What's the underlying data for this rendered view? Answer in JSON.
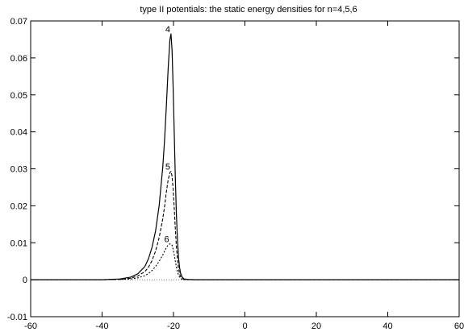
{
  "chart_data": {
    "type": "line",
    "title": "type II potentials: the static energy densities for n=4,5,6",
    "xlabel": "",
    "ylabel": "",
    "xlim": [
      -60,
      60
    ],
    "ylim": [
      -0.01,
      0.07
    ],
    "xticks": [
      -60,
      -40,
      -20,
      0,
      20,
      40,
      60
    ],
    "yticks": [
      -0.01,
      0,
      0.01,
      0.02,
      0.03,
      0.04,
      0.05,
      0.06,
      0.07
    ],
    "xtick_labels": [
      "-60",
      "-40",
      "-20",
      "0",
      "20",
      "40",
      "60"
    ],
    "ytick_labels": [
      "-0.01",
      "0",
      "0.01",
      "0.02",
      "0.03",
      "0.04",
      "0.05",
      "0.06",
      "0.07"
    ],
    "grid": false,
    "legend": "none",
    "series": [
      {
        "label": "4",
        "style": "solid",
        "x": [
          -60,
          -40,
          -35,
          -32,
          -30,
          -28,
          -27,
          -26,
          -25,
          -24,
          -23,
          -22.5,
          -22,
          -21.5,
          -21,
          -20.7,
          -20.4,
          -20.1,
          -19.8,
          -19.5,
          -19.2,
          -18.9,
          -18.6,
          -18.3,
          -18,
          -17.5,
          -17,
          -16,
          -14,
          0,
          60
        ],
        "values": [
          0,
          0,
          0.0002,
          0.0007,
          0.0016,
          0.0036,
          0.0057,
          0.0088,
          0.0133,
          0.0202,
          0.0305,
          0.0378,
          0.047,
          0.057,
          0.065,
          0.0665,
          0.062,
          0.052,
          0.04,
          0.028,
          0.018,
          0.011,
          0.0062,
          0.0033,
          0.0017,
          0.0006,
          0.0002,
          0.0001,
          0,
          0,
          0
        ]
      },
      {
        "label": "5",
        "style": "dashed",
        "x": [
          -60,
          -40,
          -35,
          -32,
          -30,
          -28,
          -27,
          -26,
          -25,
          -24,
          -23,
          -22.5,
          -22,
          -21.5,
          -21,
          -20.7,
          -20.4,
          -20.1,
          -19.8,
          -19.5,
          -19.2,
          -18.9,
          -18.6,
          -18.3,
          -18,
          -17.5,
          -17,
          -16,
          -14,
          0,
          60
        ],
        "values": [
          0,
          0,
          0.0001,
          0.0004,
          0.001,
          0.0022,
          0.0034,
          0.0052,
          0.0078,
          0.0115,
          0.0165,
          0.0198,
          0.0237,
          0.027,
          0.029,
          0.0293,
          0.028,
          0.0245,
          0.0195,
          0.014,
          0.0092,
          0.0056,
          0.0031,
          0.0016,
          0.0008,
          0.0003,
          0.0001,
          0,
          0,
          0,
          0
        ]
      },
      {
        "label": "6",
        "style": "dotted",
        "x": [
          -60,
          -40,
          -35,
          -32,
          -30,
          -28,
          -27,
          -26,
          -25,
          -24,
          -23,
          -22.5,
          -22,
          -21.5,
          -21,
          -20.7,
          -20.4,
          -20.1,
          -19.8,
          -19.5,
          -19.2,
          -18.9,
          -18.6,
          -18.3,
          -18,
          -17.5,
          -17,
          -16,
          -14,
          0,
          60
        ],
        "values": [
          0,
          0,
          0.0001,
          0.0002,
          0.0005,
          0.0011,
          0.0017,
          0.0025,
          0.0036,
          0.005,
          0.0067,
          0.0077,
          0.0087,
          0.0094,
          0.0097,
          0.0097,
          0.0093,
          0.0083,
          0.0068,
          0.0051,
          0.0035,
          0.0022,
          0.0013,
          0.0007,
          0.0003,
          0.0001,
          0,
          0,
          0,
          0,
          0
        ]
      }
    ]
  }
}
